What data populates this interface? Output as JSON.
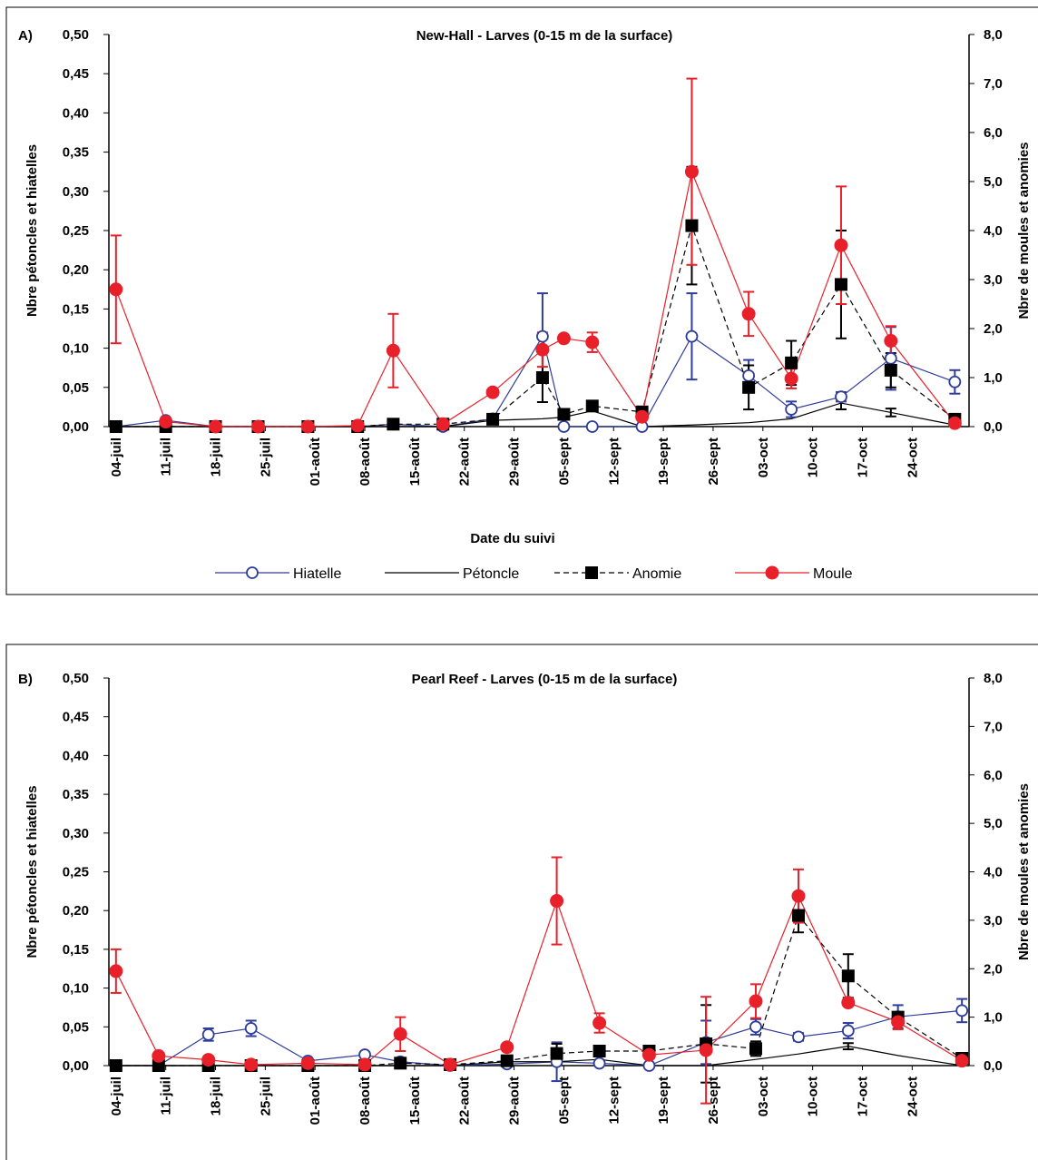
{
  "chart_data": [
    {
      "type": "line",
      "panel": "A)",
      "title": "New-Hall - Larves (0-15 m de la surface)",
      "ylabel": "Nbre pétoncles et hiatelles",
      "y2label": "Nbre de moules et anomies",
      "xlabel": "Date du suivi",
      "legend": true,
      "x": [
        "07-04",
        "07-11",
        "07-18",
        "07-24",
        "07-31",
        "08-07",
        "08-12",
        "08-19",
        "08-26",
        "09-02",
        "09-05",
        "09-09",
        "09-16",
        "09-23",
        "10-01",
        "10-07",
        "10-14",
        "10-21",
        "10-30"
      ],
      "xlim": [
        "07-03",
        "11-01"
      ],
      "xticks": [
        {
          "value": "07-04",
          "label": "04-juil"
        },
        {
          "value": "07-11",
          "label": "11-juil"
        },
        {
          "value": "07-18",
          "label": "18-juil"
        },
        {
          "value": "07-25",
          "label": "25-juil"
        },
        {
          "value": "08-01",
          "label": "01-août"
        },
        {
          "value": "08-08",
          "label": "08-août"
        },
        {
          "value": "08-15",
          "label": "15-août"
        },
        {
          "value": "08-22",
          "label": "22-août"
        },
        {
          "value": "08-29",
          "label": "29-août"
        },
        {
          "value": "09-05",
          "label": "05-sept"
        },
        {
          "value": "09-12",
          "label": "12-sept"
        },
        {
          "value": "09-19",
          "label": "19-sept"
        },
        {
          "value": "09-26",
          "label": "26-sept"
        },
        {
          "value": "10-03",
          "label": "03-oct"
        },
        {
          "value": "10-10",
          "label": "10-oct"
        },
        {
          "value": "10-17",
          "label": "17-oct"
        },
        {
          "value": "10-24",
          "label": "24-oct"
        }
      ],
      "ylim": [
        0,
        0.5
      ],
      "yticks": [
        {
          "value": 0,
          "label": "0,00"
        },
        {
          "value": 0.05,
          "label": "0,05"
        },
        {
          "value": 0.1,
          "label": "0,10"
        },
        {
          "value": 0.15,
          "label": "0,15"
        },
        {
          "value": 0.2,
          "label": "0,20"
        },
        {
          "value": 0.25,
          "label": "0,25"
        },
        {
          "value": 0.3,
          "label": "0,30"
        },
        {
          "value": 0.35,
          "label": "0,35"
        },
        {
          "value": 0.4,
          "label": "0,40"
        },
        {
          "value": 0.45,
          "label": "0,45"
        },
        {
          "value": 0.5,
          "label": "0,50"
        }
      ],
      "y2lim": [
        0,
        8
      ],
      "y2ticks": [
        {
          "value": 0,
          "label": "0,0"
        },
        {
          "value": 1,
          "label": "1,0"
        },
        {
          "value": 2,
          "label": "2,0"
        },
        {
          "value": 3,
          "label": "3,0"
        },
        {
          "value": 4,
          "label": "4,0"
        },
        {
          "value": 5,
          "label": "5,0"
        },
        {
          "value": 6,
          "label": "6,0"
        },
        {
          "value": 7,
          "label": "7,0"
        },
        {
          "value": 8,
          "label": "8,0"
        }
      ],
      "series": [
        {
          "name": "Hiatelle",
          "color": "#2e3d9a",
          "marker": "circle-open",
          "dash": "solid",
          "values": [
            0,
            0.008,
            0,
            0,
            0,
            0,
            0.003,
            0,
            0.01,
            0.115,
            0,
            0,
            0,
            0.115,
            0.065,
            0.022,
            0.038,
            0.087,
            0.057
          ],
          "errors": [
            null,
            null,
            null,
            null,
            null,
            null,
            null,
            null,
            null,
            0.055,
            null,
            null,
            null,
            0.055,
            0.02,
            0.01,
            0.006,
            0.04,
            0.015
          ]
        },
        {
          "name": "Pétoncle",
          "color": "#000000",
          "marker": "none",
          "dash": "solid",
          "values": [
            0,
            0,
            0,
            0,
            0,
            0,
            0,
            0,
            0.008,
            0.01,
            0.012,
            0.02,
            0,
            0.002,
            0.005,
            0.01,
            0.03,
            0.018,
            0.002
          ],
          "errors": [
            null,
            null,
            null,
            null,
            null,
            null,
            null,
            null,
            null,
            null,
            null,
            null,
            null,
            null,
            null,
            null,
            0.008,
            0.005,
            null
          ]
        },
        {
          "name": "Anomie",
          "color": "#000000",
          "marker": "square",
          "dash": "dashed",
          "axis": "y2",
          "values": [
            0,
            0,
            0,
            0,
            0,
            0,
            0.05,
            0.05,
            0.15,
            1.0,
            0.25,
            0.42,
            0.3,
            4.1,
            0.8,
            1.3,
            2.9,
            1.15,
            0.15
          ],
          "errors": [
            null,
            null,
            null,
            null,
            null,
            null,
            null,
            null,
            null,
            0.5,
            null,
            null,
            null,
            1.2,
            0.45,
            0.45,
            1.1,
            0.35,
            null
          ]
        },
        {
          "name": "Moule",
          "color": "#e8202a",
          "marker": "circle",
          "dash": "solid",
          "axis": "y2",
          "values": [
            2.8,
            0.1,
            0,
            0,
            0,
            0.02,
            1.55,
            0.05,
            0.7,
            1.57,
            1.8,
            1.72,
            0.2,
            5.2,
            2.3,
            0.98,
            3.7,
            1.75,
            0.07
          ],
          "errors": [
            1.1,
            null,
            null,
            null,
            null,
            null,
            0.75,
            null,
            null,
            0.35,
            null,
            0.2,
            null,
            1.9,
            0.45,
            0.2,
            1.2,
            0.3,
            null
          ]
        }
      ]
    },
    {
      "type": "line",
      "panel": "B)",
      "title": "Pearl Reef - Larves (0-15 m de la surface)",
      "ylabel": "Nbre pétoncles et hiatelles",
      "y2label": "Nbre de moules et anomies",
      "legend": false,
      "x": [
        "07-04",
        "07-10",
        "07-17",
        "07-23",
        "07-31",
        "08-08",
        "08-13",
        "08-20",
        "08-28",
        "09-04",
        "09-10",
        "09-17",
        "09-25",
        "10-02",
        "10-08",
        "10-15",
        "10-22",
        "10-31"
      ],
      "xlim": [
        "07-03",
        "11-01"
      ],
      "xticks": [
        {
          "value": "07-04",
          "label": "04-juil"
        },
        {
          "value": "07-11",
          "label": "11-juil"
        },
        {
          "value": "07-18",
          "label": "18-juil"
        },
        {
          "value": "07-25",
          "label": "25-juil"
        },
        {
          "value": "08-01",
          "label": "01-août"
        },
        {
          "value": "08-08",
          "label": "08-août"
        },
        {
          "value": "08-15",
          "label": "15-août"
        },
        {
          "value": "08-22",
          "label": "22-août"
        },
        {
          "value": "08-29",
          "label": "29-août"
        },
        {
          "value": "09-05",
          "label": "05-sept"
        },
        {
          "value": "09-12",
          "label": "12-sept"
        },
        {
          "value": "09-19",
          "label": "19-sept"
        },
        {
          "value": "09-26",
          "label": "26-sept"
        },
        {
          "value": "10-03",
          "label": "03-oct"
        },
        {
          "value": "10-10",
          "label": "10-oct"
        },
        {
          "value": "10-17",
          "label": "17-oct"
        },
        {
          "value": "10-24",
          "label": "24-oct"
        }
      ],
      "ylim": [
        0,
        0.5
      ],
      "yticks": [
        {
          "value": 0,
          "label": "0,00"
        },
        {
          "value": 0.05,
          "label": "0,05"
        },
        {
          "value": 0.1,
          "label": "0,10"
        },
        {
          "value": 0.15,
          "label": "0,15"
        },
        {
          "value": 0.2,
          "label": "0,20"
        },
        {
          "value": 0.25,
          "label": "0,25"
        },
        {
          "value": 0.3,
          "label": "0,30"
        },
        {
          "value": 0.35,
          "label": "0,35"
        },
        {
          "value": 0.4,
          "label": "0,40"
        },
        {
          "value": 0.45,
          "label": "0,45"
        },
        {
          "value": 0.5,
          "label": "0,50"
        }
      ],
      "y2lim": [
        0,
        8
      ],
      "y2ticks": [
        {
          "value": 0,
          "label": "0,0"
        },
        {
          "value": 1,
          "label": "1,0"
        },
        {
          "value": 2,
          "label": "2,0"
        },
        {
          "value": 3,
          "label": "3,0"
        },
        {
          "value": 4,
          "label": "4,0"
        },
        {
          "value": 5,
          "label": "5,0"
        },
        {
          "value": 6,
          "label": "6,0"
        },
        {
          "value": 7,
          "label": "7,0"
        },
        {
          "value": 8,
          "label": "8,0"
        }
      ],
      "series": [
        {
          "color": "#2e3d9a",
          "marker": "circle-open",
          "dash": "solid",
          "values": [
            0,
            0,
            0.04,
            0.048,
            0.006,
            0.014,
            0.005,
            0,
            0.002,
            0.005,
            0.003,
            0,
            0.03,
            0.05,
            0.037,
            0.045,
            0.063,
            0.071
          ],
          "errors": [
            null,
            null,
            0.008,
            0.01,
            null,
            null,
            null,
            null,
            null,
            0.025,
            null,
            null,
            0.028,
            0.01,
            0.005,
            0.01,
            0.015,
            0.015
          ]
        },
        {
          "color": "#000000",
          "marker": "none",
          "dash": "solid",
          "values": [
            0,
            0,
            0,
            0,
            0,
            0,
            0,
            0,
            0.005,
            0.005,
            0.008,
            0,
            0,
            0.008,
            0.015,
            0.025,
            0.013,
            0
          ],
          "errors": [
            null,
            null,
            null,
            null,
            null,
            null,
            null,
            null,
            null,
            null,
            null,
            null,
            null,
            null,
            null,
            0.004,
            null,
            null
          ]
        },
        {
          "color": "#000000",
          "marker": "square",
          "dash": "dashed",
          "axis": "y2",
          "values": [
            0,
            0,
            0,
            0,
            0,
            0,
            0.05,
            0.02,
            0.1,
            0.25,
            0.3,
            0.3,
            0.45,
            0.35,
            3.1,
            1.85,
            1.0,
            0.15
          ],
          "errors": [
            null,
            null,
            null,
            null,
            null,
            null,
            null,
            null,
            null,
            0.2,
            null,
            null,
            0.8,
            0.15,
            0.35,
            0.45,
            null,
            null
          ]
        },
        {
          "color": "#e8202a",
          "marker": "circle",
          "dash": "solid",
          "axis": "y2",
          "values": [
            1.95,
            0.2,
            0.12,
            0.02,
            0.05,
            0.02,
            0.65,
            0.02,
            0.38,
            3.4,
            0.88,
            0.22,
            0.32,
            1.33,
            3.5,
            1.3,
            0.9,
            0.1
          ],
          "errors": [
            0.45,
            null,
            null,
            null,
            null,
            null,
            0.35,
            null,
            0.05,
            0.9,
            0.2,
            null,
            1.1,
            0.35,
            0.55,
            null,
            0.15,
            null
          ]
        }
      ]
    }
  ]
}
